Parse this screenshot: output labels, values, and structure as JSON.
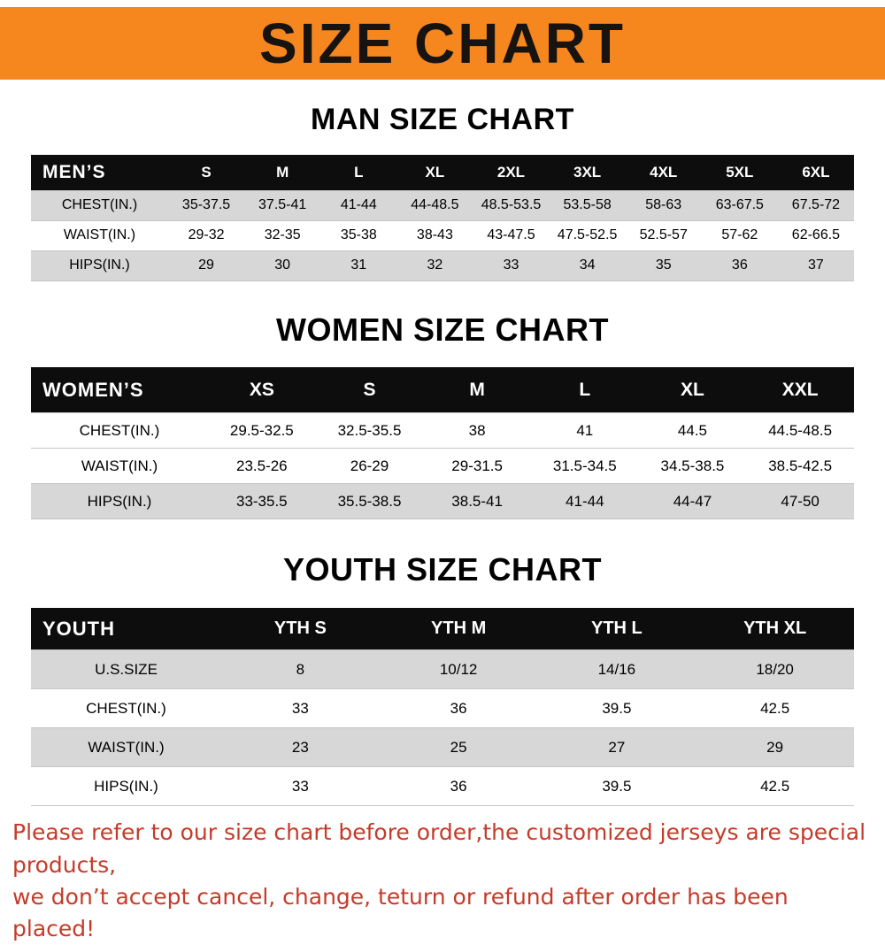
{
  "banner": {
    "title": "SIZE CHART"
  },
  "colors": {
    "banner_background": "#f6871f",
    "banner_text": "#171310",
    "table_header_background": "#0d0d0d",
    "table_header_text": "#ffffff",
    "shaded_row_background": "#d7d7d7",
    "notice_text": "#c53b2a"
  },
  "section_headings": [
    "MAN SIZE CHART",
    "WOMEN SIZE CHART",
    "YOUTH SIZE CHART"
  ],
  "chart_data": [
    {
      "type": "table",
      "title": "MAN SIZE CHART",
      "corner_label": "MEN’S",
      "columns": [
        "S",
        "M",
        "L",
        "XL",
        "2XL",
        "3XL",
        "4XL",
        "5XL",
        "6XL"
      ],
      "rows": [
        {
          "label": "CHEST(IN.)",
          "values": [
            "35-37.5",
            "37.5-41",
            "41-44",
            "44-48.5",
            "48.5-53.5",
            "53.5-58",
            "58-63",
            "63-67.5",
            "67.5-72"
          ]
        },
        {
          "label": "WAIST(IN.)",
          "values": [
            "29-32",
            "32-35",
            "35-38",
            "38-43",
            "43-47.5",
            "47.5-52.5",
            "52.5-57",
            "57-62",
            "62-66.5"
          ]
        },
        {
          "label": "HIPS(IN.)",
          "values": [
            "29",
            "30",
            "31",
            "32",
            "33",
            "34",
            "35",
            "36",
            "37"
          ]
        }
      ]
    },
    {
      "type": "table",
      "title": "WOMEN SIZE CHART",
      "corner_label": "WOMEN’S",
      "columns": [
        "XS",
        "S",
        "M",
        "L",
        "XL",
        "XXL"
      ],
      "rows": [
        {
          "label": "CHEST(IN.)",
          "values": [
            "29.5-32.5",
            "32.5-35.5",
            "38",
            "41",
            "44.5",
            "44.5-48.5"
          ]
        },
        {
          "label": "WAIST(IN.)",
          "values": [
            "23.5-26",
            "26-29",
            "29-31.5",
            "31.5-34.5",
            "34.5-38.5",
            "38.5-42.5"
          ]
        },
        {
          "label": "HIPS(IN.)",
          "values": [
            "33-35.5",
            "35.5-38.5",
            "38.5-41",
            "41-44",
            "44-47",
            "47-50"
          ]
        }
      ]
    },
    {
      "type": "table",
      "title": "YOUTH SIZE CHART",
      "corner_label": "YOUTH",
      "columns": [
        "YTH S",
        "YTH M",
        "YTH L",
        "YTH XL"
      ],
      "rows": [
        {
          "label": "U.S.SIZE",
          "values": [
            "8",
            "10/12",
            "14/16",
            "18/20"
          ]
        },
        {
          "label": "CHEST(IN.)",
          "values": [
            "33",
            "36",
            "39.5",
            "42.5"
          ]
        },
        {
          "label": "WAIST(IN.)",
          "values": [
            "23",
            "25",
            "27",
            "29"
          ]
        },
        {
          "label": "HIPS(IN.)",
          "values": [
            "33",
            "36",
            "39.5",
            "42.5"
          ]
        }
      ]
    }
  ],
  "footer": {
    "lines": [
      "Please refer to our size chart before order,the customized jerseys are special products,",
      "we don’t accept cancel, change, teturn or refund after order has been placed!"
    ]
  }
}
